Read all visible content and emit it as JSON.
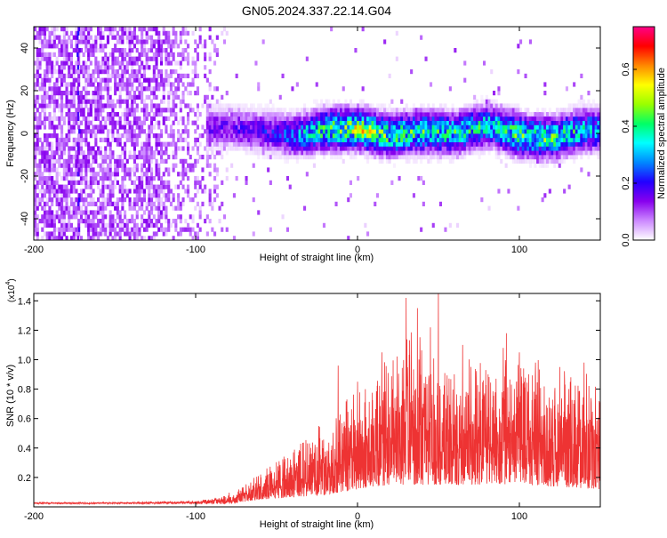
{
  "figure_title": "GN05.2024.337.22.14.G04",
  "chart_data": [
    {
      "type": "heatmap",
      "xlabel": "Height of straight line (km)",
      "ylabel": "Frequency (Hz)",
      "xlim": [
        -200,
        150
      ],
      "ylim": [
        -50,
        50
      ],
      "x_ticks": [
        -200,
        -100,
        0,
        100
      ],
      "x_tick_labels": [
        "-200",
        "-100",
        "0",
        "100"
      ],
      "y_ticks": [
        -40,
        -20,
        0,
        20,
        40
      ],
      "y_tick_labels": [
        "-40",
        "-20",
        "0",
        "20",
        "40"
      ],
      "colorbar": {
        "label": "Normalized spectral amplitude",
        "range": [
          0,
          0.75
        ],
        "ticks": [
          0.0,
          0.2,
          0.4,
          0.6
        ],
        "tick_labels": [
          "0.0",
          "0.2",
          "0.4",
          "0.6"
        ],
        "colormap": [
          "#ffffff",
          "#cc88ff",
          "#8800ee",
          "#2200ff",
          "#0088ff",
          "#00ffff",
          "#00ff66",
          "#99ff00",
          "#ffff00",
          "#ff8800",
          "#ff0000",
          "#ff0088"
        ]
      },
      "noise_region_x": [
        -200,
        -80
      ],
      "signal_band": {
        "center_freq_hz": [
          [
            -80,
            2
          ],
          [
            -60,
            0
          ],
          [
            -40,
            -2
          ],
          [
            -20,
            1
          ],
          [
            0,
            1
          ],
          [
            20,
            -2
          ],
          [
            40,
            0
          ],
          [
            60,
            -1
          ],
          [
            80,
            3
          ],
          [
            100,
            -2
          ],
          [
            120,
            -3
          ],
          [
            140,
            1
          ],
          [
            150,
            0
          ]
        ],
        "half_width_hz": 12,
        "core_amplitude": [
          [
            -80,
            0.15
          ],
          [
            -50,
            0.2
          ],
          [
            -20,
            0.4
          ],
          [
            0,
            0.5
          ],
          [
            20,
            0.4
          ],
          [
            50,
            0.38
          ],
          [
            80,
            0.35
          ],
          [
            100,
            0.42
          ],
          [
            120,
            0.4
          ],
          [
            150,
            0.3
          ]
        ]
      }
    },
    {
      "type": "line",
      "xlabel": "Height of straight line (km)",
      "ylabel": "SNR (10 * v/v)",
      "y_multiplier": "(x10",
      "y_multiplier_exp": "4",
      "xlim": [
        -200,
        150
      ],
      "ylim": [
        0,
        1.45
      ],
      "x_ticks": [
        -200,
        -100,
        0,
        100
      ],
      "x_tick_labels": [
        "-200",
        "-100",
        "0",
        "100"
      ],
      "y_ticks": [
        0.2,
        0.4,
        0.6,
        0.8,
        1.0,
        1.2,
        1.4
      ],
      "y_tick_labels": [
        "0.2",
        "0.4",
        "0.6",
        "0.8",
        "1.0",
        "1.2",
        "1.4"
      ],
      "series_color": "#ee3333",
      "envelope": [
        [
          -200,
          0.03
        ],
        [
          -150,
          0.03
        ],
        [
          -100,
          0.04
        ],
        [
          -85,
          0.06
        ],
        [
          -70,
          0.14
        ],
        [
          -60,
          0.22
        ],
        [
          -50,
          0.3
        ],
        [
          -40,
          0.38
        ],
        [
          -30,
          0.45
        ],
        [
          -20,
          0.5
        ],
        [
          -15,
          0.58
        ],
        [
          -10,
          0.62
        ],
        [
          0,
          0.72
        ],
        [
          10,
          0.8
        ],
        [
          20,
          0.95
        ],
        [
          30,
          1.05
        ],
        [
          40,
          1.05
        ],
        [
          50,
          1.0
        ],
        [
          60,
          0.95
        ],
        [
          80,
          0.95
        ],
        [
          100,
          0.9
        ],
        [
          120,
          0.9
        ],
        [
          140,
          0.88
        ],
        [
          150,
          0.85
        ]
      ],
      "floor": [
        [
          -200,
          0.02
        ],
        [
          -100,
          0.02
        ],
        [
          -80,
          0.02
        ],
        [
          -60,
          0.05
        ],
        [
          -20,
          0.08
        ],
        [
          0,
          0.12
        ],
        [
          20,
          0.15
        ],
        [
          60,
          0.15
        ],
        [
          100,
          0.15
        ],
        [
          150,
          0.12
        ]
      ],
      "peaks": [
        [
          -12,
          0.96
        ],
        [
          0,
          0.85
        ],
        [
          15,
          1.05
        ],
        [
          30,
          1.42
        ],
        [
          37,
          1.35
        ],
        [
          45,
          1.22
        ],
        [
          50,
          1.45
        ],
        [
          65,
          1.1
        ],
        [
          90,
          1.08
        ],
        [
          92,
          1.18
        ],
        [
          100,
          1.05
        ],
        [
          110,
          0.98
        ],
        [
          125,
          0.95
        ],
        [
          140,
          0.98
        ]
      ]
    }
  ]
}
